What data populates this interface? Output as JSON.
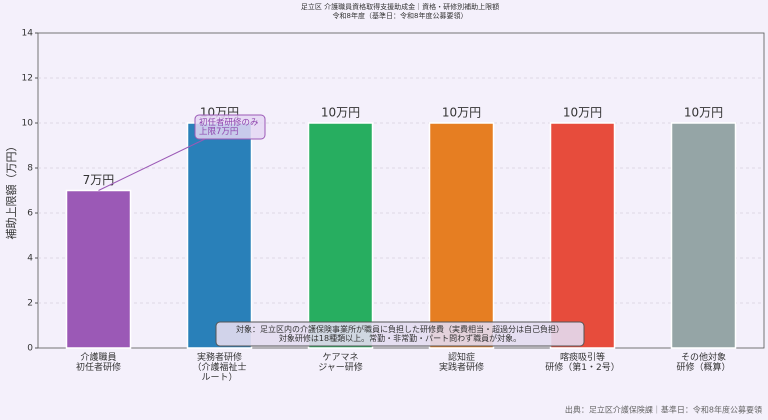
{
  "chart_data": {
    "type": "bar",
    "title": "足立区 介護職員資格取得支援助成金｜資格・研修別補助上限額",
    "subtitle": "令和8年度（基準日：令和8年度公募要領）",
    "y_label": "補助上限額（万円）",
    "categories": [
      "介護職員\n初任者研修",
      "実務者研修\n（介護福祉士\nルート）",
      "ケアマネ\nジャー研修",
      "認知症\n実践者研修",
      "喀痰吸引等\n研修（第1・2号）",
      "その他対象\n研修（概算）"
    ],
    "values": [
      7,
      10,
      10,
      10,
      10,
      10
    ],
    "value_labels": [
      "7万円",
      "10万円",
      "10万円",
      "10万円",
      "10万円",
      "10万円"
    ],
    "colors": [
      "#9b59b6",
      "#2980b9",
      "#27ae60",
      "#e67e22",
      "#e74c3c",
      "#95a5a6"
    ],
    "ylim": [
      0,
      14
    ],
    "yticks": [
      0,
      2,
      4,
      6,
      8,
      10,
      12,
      14
    ],
    "grid": true,
    "annotation": "初任者研修のみ\n上限7万円",
    "note": "対象：足立区内の介護保険事業所が職員に負担した研修費（実費相当・超過分は自己負担）\n対象研修は18種類以上。常勤・非常勤・パート問わず職員が対象。",
    "source": "出典：足立区介護保険課｜基準日：令和8年度公募要領"
  }
}
